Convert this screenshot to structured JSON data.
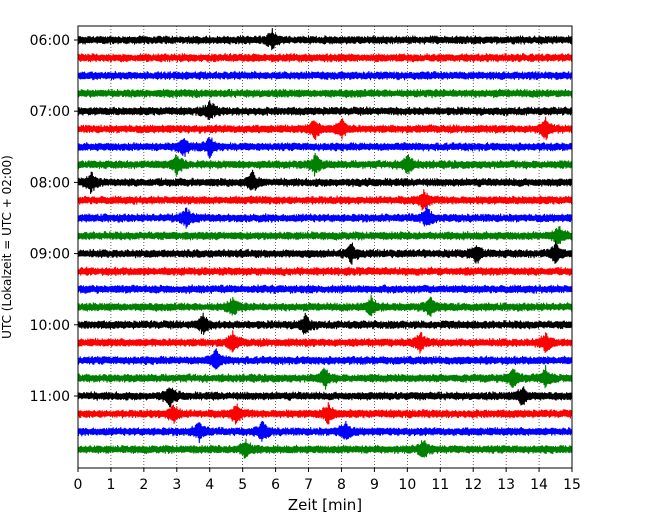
{
  "chart_data": {
    "type": "line",
    "title": "",
    "xlabel": "Zeit  [min]",
    "ylabel": "UTC (Lokalzeit = UTC + 02:00)",
    "xlim": [
      0,
      15
    ],
    "xticks": [
      0,
      1,
      2,
      3,
      4,
      5,
      6,
      7,
      8,
      9,
      10,
      11,
      12,
      13,
      14,
      15
    ],
    "grid": "vertical dotted",
    "ytick_labels": [
      "06:00",
      "07:00",
      "08:00",
      "09:00",
      "10:00",
      "11:00"
    ],
    "trace_interval_min": 15,
    "colors": [
      "#000000",
      "#ff0000",
      "#0000ff",
      "#008000"
    ],
    "traces": [
      {
        "start": "06:00",
        "color": "#000000",
        "events": [
          5.9
        ]
      },
      {
        "start": "06:15",
        "color": "#ff0000",
        "events": []
      },
      {
        "start": "06:30",
        "color": "#0000ff",
        "events": []
      },
      {
        "start": "06:45",
        "color": "#008000",
        "events": []
      },
      {
        "start": "07:00",
        "color": "#000000",
        "events": [
          4.0
        ]
      },
      {
        "start": "07:15",
        "color": "#ff0000",
        "events": [
          7.2,
          8.0,
          14.2
        ]
      },
      {
        "start": "07:30",
        "color": "#0000ff",
        "events": [
          4.0,
          3.2
        ]
      },
      {
        "start": "07:45",
        "color": "#008000",
        "events": [
          3.0,
          7.2,
          10.0
        ]
      },
      {
        "start": "08:00",
        "color": "#000000",
        "events": [
          5.3,
          0.4
        ]
      },
      {
        "start": "08:15",
        "color": "#ff0000",
        "events": [
          10.5
        ]
      },
      {
        "start": "08:30",
        "color": "#0000ff",
        "events": [
          3.3,
          10.6
        ]
      },
      {
        "start": "08:45",
        "color": "#008000",
        "events": [
          14.6
        ]
      },
      {
        "start": "09:00",
        "color": "#000000",
        "events": [
          12.1,
          14.5,
          8.3
        ]
      },
      {
        "start": "09:15",
        "color": "#ff0000",
        "events": []
      },
      {
        "start": "09:30",
        "color": "#0000ff",
        "events": []
      },
      {
        "start": "09:45",
        "color": "#008000",
        "events": [
          8.9,
          4.7,
          10.7
        ]
      },
      {
        "start": "10:00",
        "color": "#000000",
        "events": [
          6.9,
          3.8
        ]
      },
      {
        "start": "10:15",
        "color": "#ff0000",
        "events": [
          10.4,
          4.7,
          14.2
        ]
      },
      {
        "start": "10:30",
        "color": "#0000ff",
        "events": [
          4.2
        ]
      },
      {
        "start": "10:45",
        "color": "#008000",
        "events": [
          7.5,
          13.2,
          14.2
        ]
      },
      {
        "start": "11:00",
        "color": "#000000",
        "events": [
          13.5,
          2.8
        ]
      },
      {
        "start": "11:15",
        "color": "#ff0000",
        "events": [
          2.9,
          7.6,
          4.8
        ]
      },
      {
        "start": "11:30",
        "color": "#0000ff",
        "events": [
          8.1,
          5.6,
          3.7
        ]
      },
      {
        "start": "11:45",
        "color": "#008000",
        "events": [
          5.1,
          10.5
        ]
      }
    ]
  }
}
